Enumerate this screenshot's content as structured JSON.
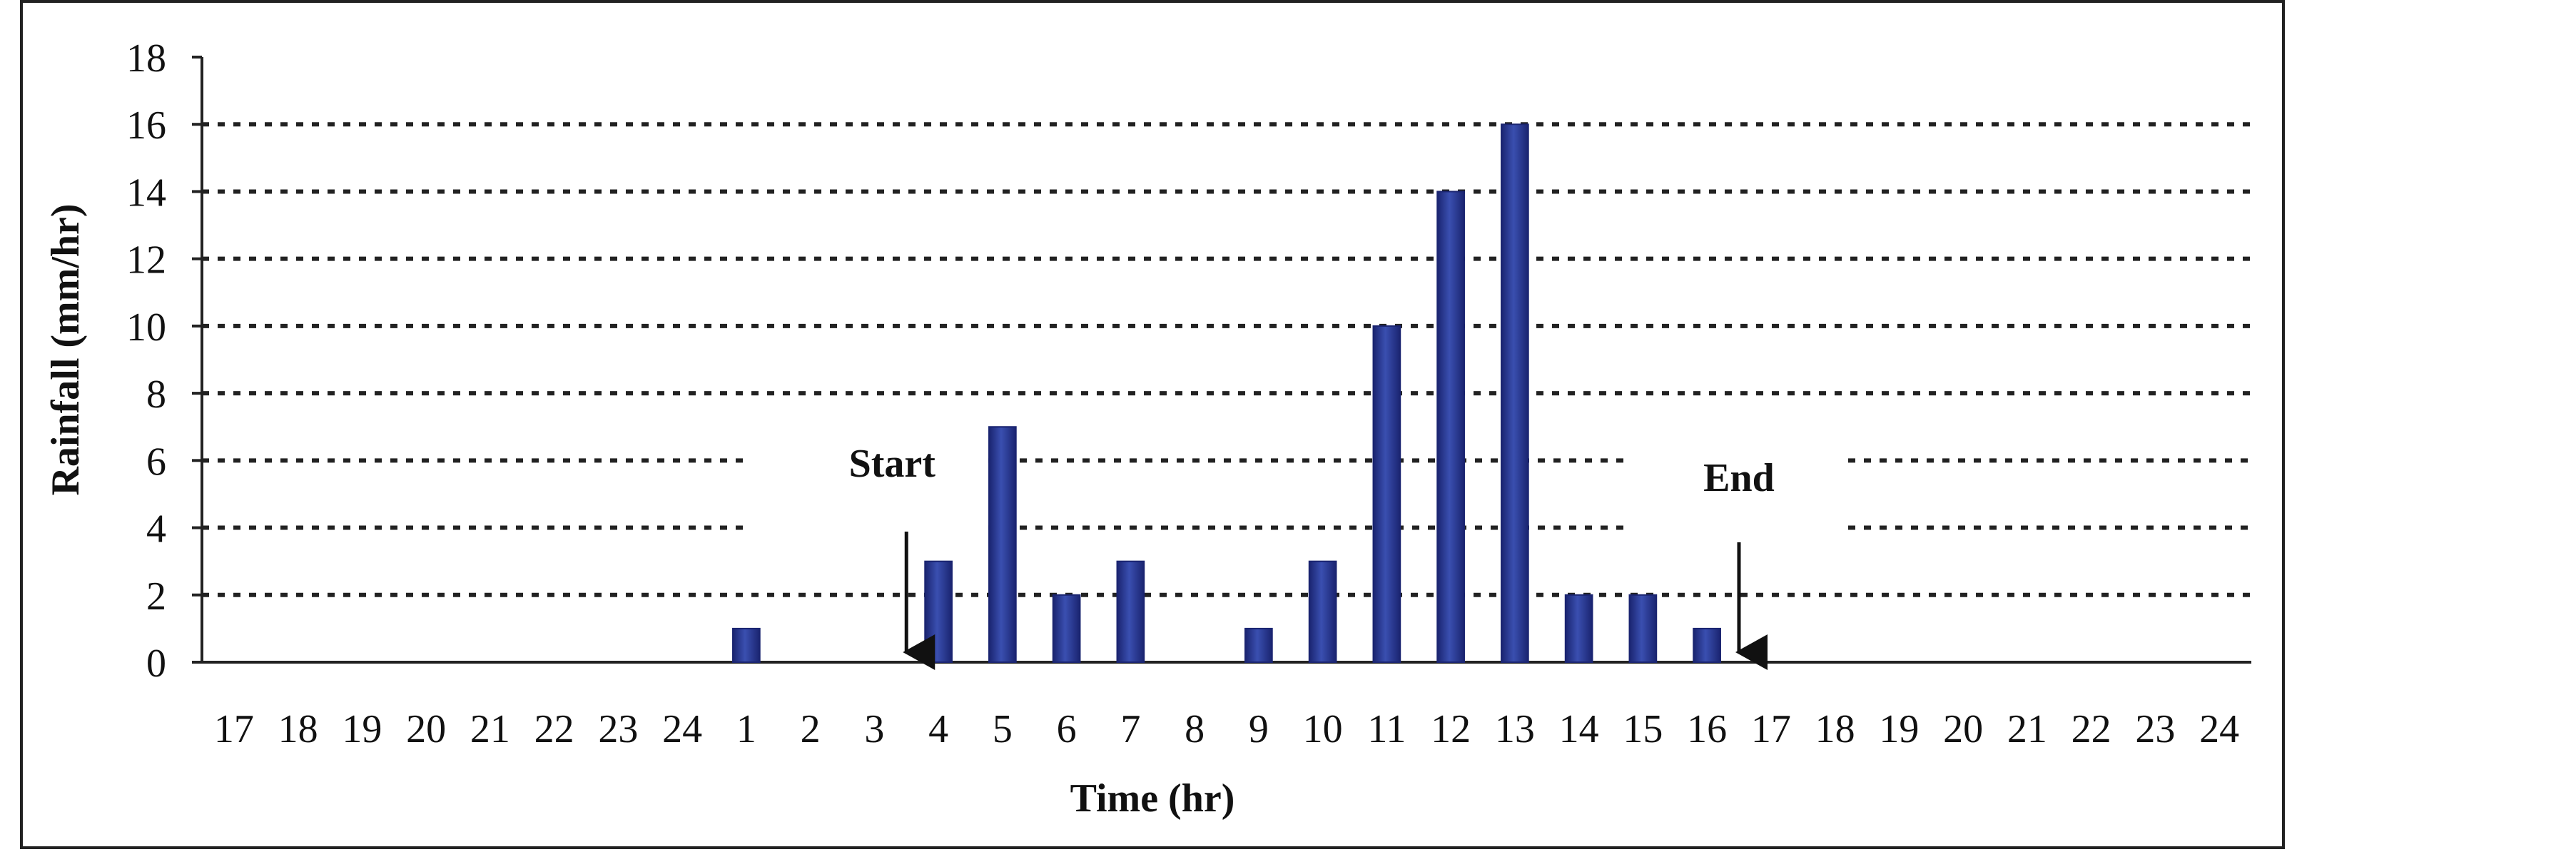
{
  "chart_data": {
    "type": "bar",
    "xlabel": "Time (hr)",
    "ylabel": "Rainfall (mm/hr)",
    "ylim": [
      0,
      18
    ],
    "y_ticks": [
      "0",
      "2",
      "4",
      "6",
      "8",
      "10",
      "12",
      "14",
      "16",
      "18"
    ],
    "grid": "horizontal dashed",
    "categories": [
      "17",
      "18",
      "19",
      "20",
      "21",
      "22",
      "23",
      "24",
      "1",
      "2",
      "3",
      "4",
      "5",
      "6",
      "7",
      "8",
      "9",
      "10",
      "11",
      "12",
      "13",
      "14",
      "15",
      "16",
      "17",
      "18",
      "19",
      "20",
      "21",
      "22",
      "23",
      "24"
    ],
    "values": [
      0,
      0,
      0,
      0,
      0,
      0,
      0,
      0,
      1,
      0,
      0,
      3,
      7,
      2,
      3,
      0,
      1,
      3,
      10,
      14,
      16,
      2,
      2,
      1,
      0,
      0,
      0,
      0,
      0,
      0,
      0,
      0
    ],
    "bar_color": "#2b3a8f",
    "annotations": [
      {
        "text": "Start",
        "arrow_between": [
          "3",
          "4"
        ]
      },
      {
        "text": "End",
        "arrow_between": [
          "16",
          "17"
        ]
      }
    ]
  }
}
